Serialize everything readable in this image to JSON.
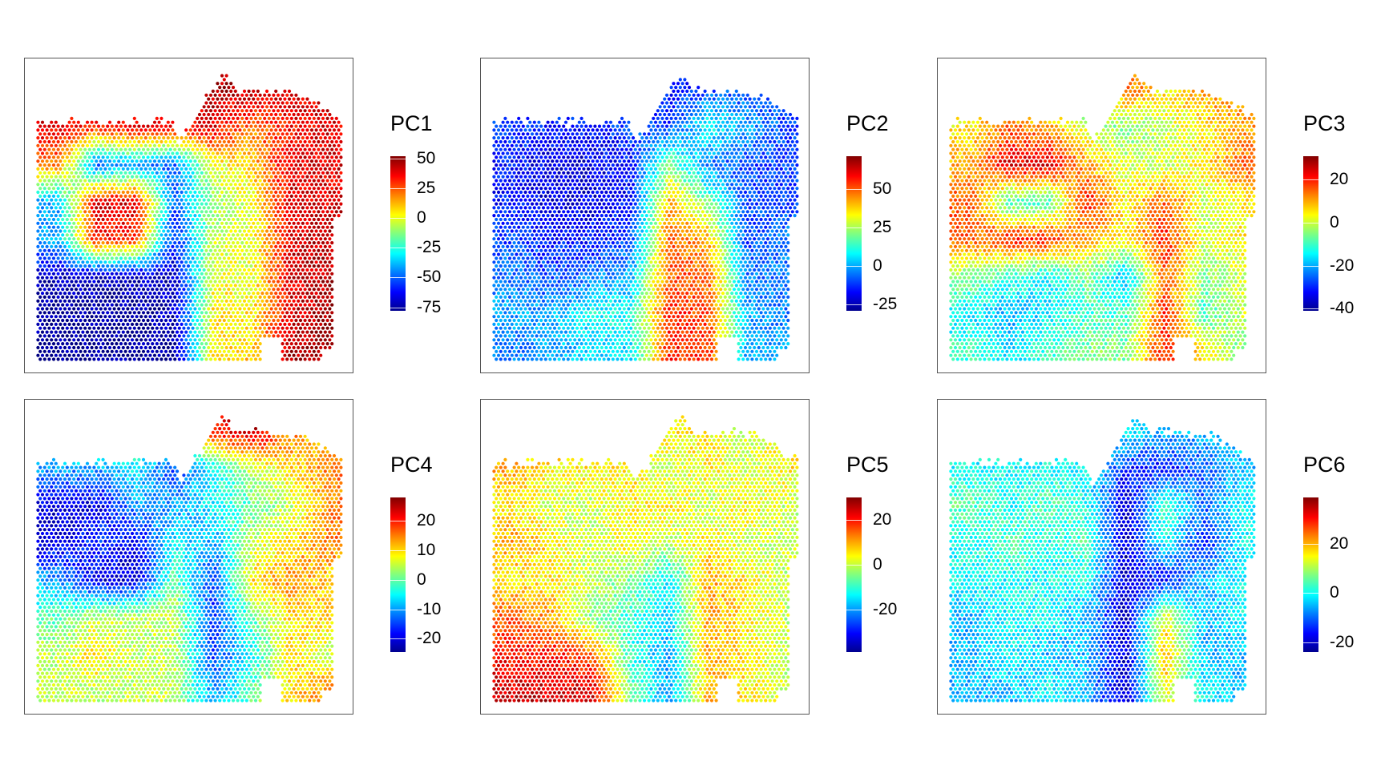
{
  "chart_data": [
    {
      "type": "scatter",
      "title": "PC1",
      "legend_ticks": [
        50,
        25,
        0,
        -25,
        -50,
        -75
      ],
      "color_range": [
        -78,
        52
      ],
      "grid_values": [
        [
          40,
          40,
          40,
          40,
          45,
          45,
          40,
          40
        ],
        [
          40,
          30,
          40,
          35,
          40,
          20,
          35,
          40
        ],
        [
          20,
          -50,
          -40,
          -50,
          0,
          10,
          40,
          40
        ],
        [
          -40,
          40,
          40,
          -50,
          -10,
          0,
          40,
          40
        ],
        [
          -40,
          35,
          30,
          -60,
          -5,
          0,
          40,
          45
        ],
        [
          -70,
          -70,
          -70,
          -70,
          0,
          0,
          40,
          45
        ],
        [
          -75,
          -75,
          -75,
          -70,
          5,
          5,
          40,
          50
        ],
        [
          -75,
          -75,
          -75,
          -75,
          5,
          10,
          45,
          50
        ]
      ]
    },
    {
      "type": "scatter",
      "title": "PC2",
      "legend_ticks": [
        50,
        25,
        0,
        -25
      ],
      "color_range": [
        -29,
        71
      ],
      "grid_values": [
        [
          -10,
          -10,
          -10,
          -10,
          -15,
          -10,
          -10,
          -10
        ],
        [
          -10,
          -15,
          -15,
          -10,
          -10,
          10,
          0,
          -10
        ],
        [
          -15,
          -20,
          -20,
          -15,
          20,
          -5,
          -10,
          -10
        ],
        [
          -15,
          -20,
          -20,
          -15,
          40,
          20,
          -10,
          -10
        ],
        [
          -10,
          -15,
          -15,
          -10,
          50,
          40,
          -10,
          -5
        ],
        [
          -5,
          -10,
          -5,
          0,
          50,
          50,
          -5,
          -5
        ],
        [
          0,
          0,
          10,
          10,
          55,
          50,
          0,
          -5
        ],
        [
          -5,
          0,
          5,
          5,
          55,
          55,
          0,
          0
        ]
      ]
    },
    {
      "type": "scatter",
      "title": "PC3",
      "legend_ticks": [
        20,
        0,
        -20,
        -40
      ],
      "color_range": [
        -41,
        31
      ],
      "grid_values": [
        [
          0,
          5,
          -5,
          -10,
          15,
          5,
          10,
          15
        ],
        [
          5,
          15,
          10,
          0,
          -5,
          0,
          5,
          10
        ],
        [
          10,
          25,
          25,
          10,
          0,
          0,
          5,
          15
        ],
        [
          15,
          -10,
          -10,
          20,
          5,
          15,
          0,
          5
        ],
        [
          15,
          20,
          20,
          10,
          5,
          20,
          0,
          5
        ],
        [
          -5,
          -10,
          -15,
          -5,
          -20,
          15,
          -5,
          0
        ],
        [
          -15,
          -20,
          -15,
          -10,
          -10,
          20,
          -10,
          0
        ],
        [
          -10,
          -15,
          -10,
          -5,
          -5,
          20,
          5,
          -5
        ]
      ]
    },
    {
      "type": "scatter",
      "title": "PC4",
      "legend_ticks": [
        20,
        10,
        0,
        -10,
        -20
      ],
      "color_range": [
        -24.5,
        28
      ],
      "grid_values": [
        [
          5,
          15,
          0,
          0,
          20,
          25,
          15,
          10
        ],
        [
          -10,
          -10,
          -5,
          -15,
          -5,
          5,
          10,
          15
        ],
        [
          -20,
          -20,
          -10,
          -10,
          -5,
          0,
          5,
          15
        ],
        [
          -20,
          -15,
          -20,
          -5,
          -10,
          5,
          10,
          15
        ],
        [
          -10,
          -20,
          -20,
          0,
          -15,
          10,
          15,
          10
        ],
        [
          0,
          5,
          5,
          5,
          -15,
          0,
          10,
          10
        ],
        [
          5,
          10,
          5,
          5,
          -15,
          -5,
          10,
          5
        ],
        [
          5,
          5,
          5,
          5,
          -10,
          0,
          10,
          15
        ]
      ]
    },
    {
      "type": "scatter",
      "title": "PC5",
      "legend_ticks": [
        20,
        0,
        -20
      ],
      "color_range": [
        -39,
        30
      ],
      "grid_values": [
        [
          5,
          10,
          5,
          0,
          5,
          5,
          0,
          5
        ],
        [
          10,
          5,
          5,
          5,
          0,
          5,
          0,
          5
        ],
        [
          5,
          0,
          0,
          5,
          5,
          0,
          5,
          0
        ],
        [
          10,
          5,
          0,
          5,
          0,
          5,
          0,
          0
        ],
        [
          5,
          5,
          0,
          -5,
          -15,
          10,
          5,
          0
        ],
        [
          15,
          10,
          -5,
          -10,
          -15,
          10,
          5,
          0
        ],
        [
          20,
          20,
          15,
          -10,
          -20,
          10,
          5,
          0
        ],
        [
          25,
          25,
          25,
          -5,
          -20,
          10,
          5,
          0
        ]
      ]
    },
    {
      "type": "scatter",
      "title": "PC6",
      "legend_ticks": [
        20,
        0,
        -20
      ],
      "color_range": [
        -24,
        39
      ],
      "grid_values": [
        [
          0,
          0,
          0,
          5,
          0,
          -5,
          -5,
          0
        ],
        [
          0,
          0,
          0,
          0,
          -15,
          -15,
          -10,
          -5
        ],
        [
          5,
          0,
          5,
          0,
          -20,
          5,
          -10,
          0
        ],
        [
          0,
          5,
          0,
          5,
          -20,
          0,
          -15,
          0
        ],
        [
          0,
          0,
          0,
          0,
          -20,
          -15,
          -5,
          0
        ],
        [
          -5,
          0,
          0,
          -5,
          -20,
          15,
          -5,
          0
        ],
        [
          -5,
          0,
          -5,
          -5,
          -20,
          20,
          -5,
          -5
        ],
        [
          -5,
          -5,
          0,
          -5,
          -20,
          15,
          0,
          -5
        ]
      ]
    }
  ]
}
